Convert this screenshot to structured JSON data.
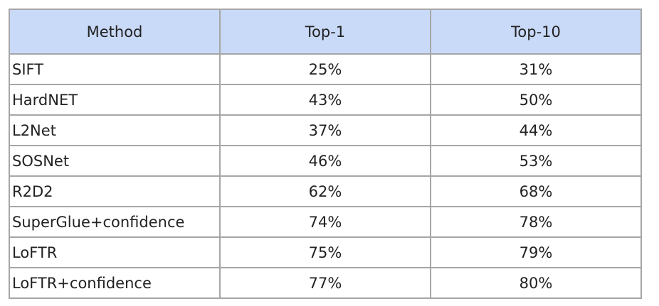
{
  "table": {
    "header": [
      "Method",
      "Top-1",
      "Top-10"
    ],
    "rows": [
      [
        "SIFT",
        "25%",
        "31%"
      ],
      [
        "HardNET",
        "43%",
        "50%"
      ],
      [
        "L2Net",
        "37%",
        "44%"
      ],
      [
        "SOSNet",
        "46%",
        "53%"
      ],
      [
        "R2D2",
        "62%",
        "68%"
      ],
      [
        "SuperGlue+confidence",
        "74%",
        "78%"
      ],
      [
        "LoFTR",
        "75%",
        "79%"
      ],
      [
        "LoFTR+confidence",
        "77%",
        "80%"
      ]
    ]
  }
}
